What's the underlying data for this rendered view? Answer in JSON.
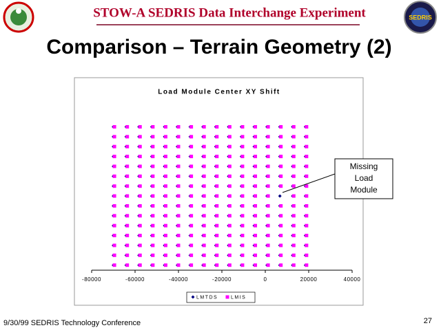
{
  "header": {
    "title": "STOW-A SEDRIS Data Interchange Experiment"
  },
  "slide_title": "Comparison – Terrain Geometry (2)",
  "footer": {
    "text": "9/30/99 SEDRIS Technology Conference",
    "page": "27"
  },
  "chart_data": {
    "type": "scatter",
    "title": "Load Module Center XY Shift",
    "annotation": [
      "Missing",
      "Load",
      "Module"
    ],
    "xlim": [
      -80000,
      40000
    ],
    "xticks": [
      -80000,
      -60000,
      -40000,
      -20000,
      0,
      20000,
      40000
    ],
    "ylim": [
      0,
      110000
    ],
    "legend": "bottom",
    "series": [
      {
        "name": "LMTDS",
        "color": "#000080",
        "marker": "diamond",
        "x": [
          -69500,
          -63600,
          -57700,
          -51800,
          -45900,
          -40000,
          -34100,
          -28200,
          -22300,
          -16400,
          -10500,
          -4600,
          1300,
          7200,
          13100,
          19000,
          -69500,
          -63600,
          -57700,
          -51800,
          -45900,
          -40000,
          -34100,
          -28200,
          -22300,
          -16400,
          -10500,
          -4600,
          1300,
          7200,
          13100,
          19000,
          -69500,
          -63600,
          -57700,
          -51800,
          -45900,
          -40000,
          -34100,
          -28200,
          -22300,
          -16400,
          -10500,
          -4600,
          1300,
          7200,
          13100,
          19000,
          -69500,
          -63600,
          -57700,
          -51800,
          -45900,
          -40000,
          -34100,
          -28200,
          -22300,
          -16400,
          -10500,
          -4600,
          1300,
          7200,
          13100,
          19000,
          -69500,
          -63600,
          -57700,
          -51800,
          -45900,
          -40000,
          -34100,
          -28200,
          -22300,
          -16400,
          -10500,
          -4600,
          1300,
          7200,
          13100,
          19000,
          -69500,
          -63600,
          -57700,
          -51800,
          -45900,
          -40000,
          -34100,
          -28200,
          -22300,
          -16400,
          -10500,
          -4600,
          1300,
          7200,
          13100,
          19000,
          -69500,
          -63600,
          -57700,
          -51800,
          -45900,
          -40000,
          -34100,
          -28200,
          -22300,
          -16400,
          -10500,
          -4600,
          1300,
          7200,
          13100,
          19000,
          -69500,
          -63600,
          -57700,
          -51800,
          -45900,
          -40000,
          -34100,
          -28200,
          -22300,
          -16400,
          -10500,
          -4600,
          1300,
          7200,
          13100,
          19000,
          -69500,
          -63600,
          -57700,
          -51800,
          -45900,
          -40000,
          -34100,
          -28200,
          -22300,
          -16400,
          -10500,
          -4600,
          1300,
          7200,
          13100,
          19000,
          -69500,
          -63600,
          -57700,
          -51800,
          -45900,
          -40000,
          -34100,
          -28200,
          -22300,
          -16400,
          -10500,
          -4600,
          1300,
          7200,
          13100,
          19000,
          -69500,
          -63600,
          -57700,
          -51800,
          -45900,
          -40000,
          -34100,
          -28200,
          -22300,
          -16400,
          -10500,
          -4600,
          1300,
          7200,
          13100,
          19000,
          -69500,
          -63600,
          -57700,
          -51800,
          -45900,
          -40000,
          -34100,
          -28200,
          -22300,
          -16400,
          -10500,
          -4600,
          1300,
          7200,
          13100,
          19000,
          -69500,
          -63600,
          -57700,
          -51800,
          -45900,
          -40000,
          -34100,
          -28200,
          -22300,
          -16400,
          -10500,
          -4600,
          1300,
          7200,
          13100,
          19000,
          -69500,
          -63600,
          -57700,
          -51800,
          -45900,
          -40000,
          -34100,
          -28200,
          -22300,
          -16400,
          -10500,
          -4600,
          1300,
          7200,
          13100,
          19000,
          -69500,
          -63600,
          -57700,
          -51800,
          -45900,
          -40000,
          -34100,
          -28200,
          -22300,
          -16400,
          -10500,
          -4600,
          1300,
          7200,
          13100,
          19000
        ],
        "values": [
          3000,
          3000,
          3000,
          3000,
          3000,
          3000,
          3000,
          3000,
          3000,
          3000,
          3000,
          3000,
          3000,
          3000,
          3000,
          3000,
          8900,
          8900,
          8900,
          8900,
          8900,
          8900,
          8900,
          8900,
          8900,
          8900,
          8900,
          8900,
          8900,
          8900,
          8900,
          8900,
          14800,
          14800,
          14800,
          14800,
          14800,
          14800,
          14800,
          14800,
          14800,
          14800,
          14800,
          14800,
          14800,
          14800,
          14800,
          14800,
          20700,
          20700,
          20700,
          20700,
          20700,
          20700,
          20700,
          20700,
          20700,
          20700,
          20700,
          20700,
          20700,
          20700,
          20700,
          20700,
          26600,
          26600,
          26600,
          26600,
          26600,
          26600,
          26600,
          26600,
          26600,
          26600,
          26600,
          26600,
          26600,
          26600,
          26600,
          26600,
          32500,
          32500,
          32500,
          32500,
          32500,
          32500,
          32500,
          32500,
          32500,
          32500,
          32500,
          32500,
          32500,
          32500,
          32500,
          32500,
          38400,
          38400,
          38400,
          38400,
          38400,
          38400,
          38400,
          38400,
          38400,
          38400,
          38400,
          38400,
          38400,
          38400,
          38400,
          38400,
          44300,
          44300,
          44300,
          44300,
          44300,
          44300,
          44300,
          44300,
          44300,
          44300,
          44300,
          44300,
          44300,
          44300,
          44300,
          44300,
          50200,
          50200,
          50200,
          50200,
          50200,
          50200,
          50200,
          50200,
          50200,
          50200,
          50200,
          50200,
          50200,
          50200,
          50200,
          50200,
          56100,
          56100,
          56100,
          56100,
          56100,
          56100,
          56100,
          56100,
          56100,
          56100,
          56100,
          56100,
          56100,
          56100,
          56100,
          56100,
          62000,
          62000,
          62000,
          62000,
          62000,
          62000,
          62000,
          62000,
          62000,
          62000,
          62000,
          62000,
          62000,
          62000,
          62000,
          62000,
          67900,
          67900,
          67900,
          67900,
          67900,
          67900,
          67900,
          67900,
          67900,
          67900,
          67900,
          67900,
          67900,
          67900,
          67900,
          67900,
          73800,
          73800,
          73800,
          73800,
          73800,
          73800,
          73800,
          73800,
          73800,
          73800,
          73800,
          73800,
          73800,
          73800,
          73800,
          73800,
          79700,
          79700,
          79700,
          79700,
          79700,
          79700,
          79700,
          79700,
          79700,
          79700,
          79700,
          79700,
          79700,
          79700,
          79700,
          79700,
          85600,
          85600,
          85600,
          85600,
          85600,
          85600,
          85600,
          85600,
          85600,
          85600,
          85600,
          85600,
          85600,
          85600,
          85600,
          85600
        ]
      },
      {
        "name": "LMIS",
        "color": "#ff00ff",
        "marker": "square",
        "x": [
          -69500,
          -63600,
          -57700,
          -51800,
          -45900,
          -40000,
          -34100,
          -28200,
          -22300,
          -16400,
          -10500,
          -4600,
          1300,
          7200,
          13100,
          19000,
          -69500,
          -63600,
          -57700,
          -51800,
          -45900,
          -40000,
          -34100,
          -28200,
          -22300,
          -16400,
          -10500,
          -4600,
          1300,
          7200,
          13100,
          19000,
          -69500,
          -63600,
          -57700,
          -51800,
          -45900,
          -40000,
          -34100,
          -28200,
          -22300,
          -16400,
          -10500,
          -4600,
          1300,
          7200,
          13100,
          19000,
          -69500,
          -63600,
          -57700,
          -51800,
          -45900,
          -40000,
          -34100,
          -28200,
          -22300,
          -16400,
          -10500,
          -4600,
          1300,
          7200,
          13100,
          19000,
          -69500,
          -63600,
          -57700,
          -51800,
          -45900,
          -40000,
          -34100,
          -28200,
          -22300,
          -16400,
          -10500,
          -4600,
          1300,
          7200,
          13100,
          19000,
          -69500,
          -63600,
          -57700,
          -51800,
          -45900,
          -40000,
          -34100,
          -28200,
          -22300,
          -16400,
          -10500,
          -4600,
          1300,
          7200,
          13100,
          19000,
          -69500,
          -63600,
          -57700,
          -51800,
          -45900,
          -40000,
          -34100,
          -28200,
          -22300,
          -16400,
          -10500,
          -4600,
          1300,
          7200,
          13100,
          19000,
          -69500,
          -63600,
          -57700,
          -51800,
          -45900,
          -40000,
          -34100,
          -28200,
          -22300,
          -16400,
          -10500,
          -4600,
          1300,
          13100,
          19000,
          -69500,
          -63600,
          -57700,
          -51800,
          -45900,
          -40000,
          -34100,
          -28200,
          -22300,
          -16400,
          -10500,
          -4600,
          1300,
          7200,
          13100,
          19000,
          -69500,
          -63600,
          -57700,
          -51800,
          -45900,
          -40000,
          -34100,
          -28200,
          -22300,
          -16400,
          -10500,
          -4600,
          1300,
          7200,
          13100,
          19000,
          -69500,
          -63600,
          -57700,
          -51800,
          -45900,
          -40000,
          -34100,
          -28200,
          -22300,
          -16400,
          -10500,
          -4600,
          1300,
          7200,
          13100,
          19000,
          -69500,
          -63600,
          -57700,
          -51800,
          -45900,
          -40000,
          -34100,
          -28200,
          -22300,
          -16400,
          -10500,
          -4600,
          1300,
          7200,
          13100,
          19000,
          -69500,
          -63600,
          -57700,
          -51800,
          -45900,
          -40000,
          -34100,
          -28200,
          -22300,
          -16400,
          -10500,
          -4600,
          1300,
          7200,
          13100,
          19000,
          -69500,
          -63600,
          -57700,
          -51800,
          -45900,
          -40000,
          -34100,
          -28200,
          -22300,
          -16400,
          -10500,
          -4600,
          1300,
          7200,
          13100,
          19000,
          -69500,
          -63600,
          -57700,
          -51800,
          -45900,
          -40000,
          -34100,
          -28200,
          -22300,
          -16400,
          -10500,
          -4600,
          1300,
          7200,
          13100,
          19000
        ],
        "values": [
          3000,
          3000,
          3000,
          3000,
          3000,
          3000,
          3000,
          3000,
          3000,
          3000,
          3000,
          3000,
          3000,
          3000,
          3000,
          3000,
          8900,
          8900,
          8900,
          8900,
          8900,
          8900,
          8900,
          8900,
          8900,
          8900,
          8900,
          8900,
          8900,
          8900,
          8900,
          8900,
          14800,
          14800,
          14800,
          14800,
          14800,
          14800,
          14800,
          14800,
          14800,
          14800,
          14800,
          14800,
          14800,
          14800,
          14800,
          14800,
          20700,
          20700,
          20700,
          20700,
          20700,
          20700,
          20700,
          20700,
          20700,
          20700,
          20700,
          20700,
          20700,
          20700,
          20700,
          20700,
          26600,
          26600,
          26600,
          26600,
          26600,
          26600,
          26600,
          26600,
          26600,
          26600,
          26600,
          26600,
          26600,
          26600,
          26600,
          26600,
          32500,
          32500,
          32500,
          32500,
          32500,
          32500,
          32500,
          32500,
          32500,
          32500,
          32500,
          32500,
          32500,
          32500,
          32500,
          32500,
          38400,
          38400,
          38400,
          38400,
          38400,
          38400,
          38400,
          38400,
          38400,
          38400,
          38400,
          38400,
          38400,
          38400,
          38400,
          38400,
          44300,
          44300,
          44300,
          44300,
          44300,
          44300,
          44300,
          44300,
          44300,
          44300,
          44300,
          44300,
          44300,
          44300,
          44300,
          50200,
          50200,
          50200,
          50200,
          50200,
          50200,
          50200,
          50200,
          50200,
          50200,
          50200,
          50200,
          50200,
          50200,
          50200,
          50200,
          56100,
          56100,
          56100,
          56100,
          56100,
          56100,
          56100,
          56100,
          56100,
          56100,
          56100,
          56100,
          56100,
          56100,
          56100,
          56100,
          62000,
          62000,
          62000,
          62000,
          62000,
          62000,
          62000,
          62000,
          62000,
          62000,
          62000,
          62000,
          62000,
          62000,
          62000,
          62000,
          67900,
          67900,
          67900,
          67900,
          67900,
          67900,
          67900,
          67900,
          67900,
          67900,
          67900,
          67900,
          67900,
          67900,
          67900,
          67900,
          73800,
          73800,
          73800,
          73800,
          73800,
          73800,
          73800,
          73800,
          73800,
          73800,
          73800,
          73800,
          73800,
          73800,
          73800,
          73800,
          79700,
          79700,
          79700,
          79700,
          79700,
          79700,
          79700,
          79700,
          79700,
          79700,
          79700,
          79700,
          79700,
          79700,
          79700,
          79700,
          85600,
          85600,
          85600,
          85600,
          85600,
          85600,
          85600,
          85600,
          85600,
          85600,
          85600,
          85600,
          85600,
          85600,
          85600,
          85600
        ]
      }
    ]
  }
}
